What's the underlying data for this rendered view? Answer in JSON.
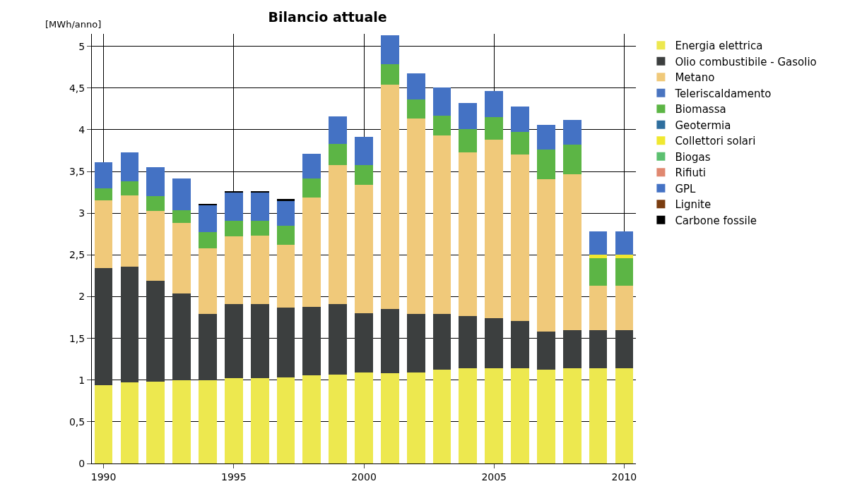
{
  "chart_data": {
    "type": "bar",
    "stacked": true,
    "title": "Bilancio attuale",
    "ylabel": "[MWh/anno]",
    "x": [
      1990,
      1991,
      1992,
      1993,
      1994,
      1995,
      1996,
      1997,
      1998,
      1999,
      2000,
      2001,
      2002,
      2003,
      2004,
      2005,
      2006,
      2007,
      2008,
      2009,
      2010
    ],
    "xlim": [
      1989.55,
      2010.45
    ],
    "xticks": [
      1990,
      1995,
      2000,
      2005,
      2010
    ],
    "ylim": [
      0,
      5.15
    ],
    "yticks": [
      0,
      {
        "value": 0.5,
        "label": "0,5"
      },
      1,
      {
        "value": 1.5,
        "label": "1,5"
      },
      2,
      {
        "value": 2.5,
        "label": "2,5"
      },
      3,
      {
        "value": 3.5,
        "label": "3,5"
      },
      4,
      {
        "value": 4.5,
        "label": "4,5"
      },
      5
    ],
    "grid": true,
    "legend": "right",
    "series": [
      {
        "name": "Energia elettrica",
        "color": "#ede84f",
        "values": [
          0.94,
          0.97,
          0.985,
          1.0,
          1.0,
          1.02,
          1.02,
          1.03,
          1.055,
          1.065,
          1.09,
          1.08,
          1.095,
          1.125,
          1.14,
          1.14,
          1.14,
          1.125,
          1.14,
          1.14,
          1.14
        ]
      },
      {
        "name": "Olio combustibile - Gasolio",
        "color": "#3c3f3f",
        "values": [
          1.405,
          1.39,
          1.205,
          1.035,
          0.79,
          0.895,
          0.895,
          0.835,
          0.825,
          0.85,
          0.715,
          0.77,
          0.695,
          0.665,
          0.63,
          0.605,
          0.57,
          0.46,
          0.46,
          0.46,
          0.46
        ]
      },
      {
        "name": "Metano",
        "color": "#f0c97a",
        "values": [
          0.81,
          0.855,
          0.84,
          0.845,
          0.79,
          0.805,
          0.815,
          0.76,
          1.31,
          1.66,
          1.535,
          2.69,
          2.345,
          2.14,
          1.96,
          2.14,
          1.99,
          1.825,
          1.865,
          0.53,
          0.53
        ]
      },
      {
        "name": "Teleriscaldamento",
        "color": "#4a74c0",
        "values": [
          0,
          0,
          0,
          0,
          0,
          0,
          0,
          0,
          0,
          0,
          0,
          0,
          0,
          0,
          0,
          0,
          0,
          0,
          0,
          0,
          0
        ]
      },
      {
        "name": "Biomassa",
        "color": "#5cb545",
        "values": [
          0.14,
          0.165,
          0.175,
          0.155,
          0.195,
          0.19,
          0.18,
          0.225,
          0.225,
          0.255,
          0.235,
          0.25,
          0.225,
          0.235,
          0.275,
          0.265,
          0.275,
          0.35,
          0.36,
          0.335,
          0.335
        ]
      },
      {
        "name": "Geotermia",
        "color": "#2e6e9e",
        "values": [
          0,
          0,
          0,
          0,
          0,
          0,
          0,
          0,
          0,
          0,
          0,
          0,
          0,
          0,
          0,
          0,
          0,
          0,
          0,
          0,
          0
        ]
      },
      {
        "name": "Collettori solari",
        "color": "#f0e830",
        "values": [
          0,
          0,
          0,
          0,
          0,
          0,
          0,
          0,
          0,
          0,
          0,
          0,
          0,
          0,
          0,
          0,
          0,
          0,
          0,
          0.035,
          0.035
        ]
      },
      {
        "name": "Biogas",
        "color": "#5cc070",
        "values": [
          0,
          0,
          0,
          0,
          0,
          0,
          0,
          0,
          0,
          0,
          0,
          0,
          0,
          0,
          0,
          0,
          0,
          0,
          0,
          0,
          0
        ]
      },
      {
        "name": "Rifiuti",
        "color": "#e08870",
        "values": [
          0,
          0,
          0,
          0,
          0,
          0,
          0,
          0,
          0,
          0,
          0,
          0,
          0,
          0,
          0,
          0,
          0,
          0,
          0,
          0,
          0
        ]
      },
      {
        "name": "GPL",
        "color": "#4472c4",
        "values": [
          0.32,
          0.35,
          0.345,
          0.38,
          0.32,
          0.335,
          0.335,
          0.3,
          0.295,
          0.33,
          0.34,
          0.34,
          0.32,
          0.34,
          0.315,
          0.315,
          0.3,
          0.295,
          0.295,
          0.285,
          0.285
        ]
      },
      {
        "name": "Lignite",
        "color": "#7a3d10",
        "values": [
          0,
          0,
          0,
          0,
          0,
          0,
          0,
          0,
          0,
          0,
          0,
          0,
          0,
          0,
          0,
          0,
          0,
          0,
          0,
          0,
          0
        ]
      },
      {
        "name": "Carbone fossile",
        "color": "#000000",
        "values": [
          0,
          0,
          0,
          0,
          0.02,
          0.02,
          0.02,
          0.02,
          0,
          0,
          0,
          0,
          0,
          0,
          0,
          0,
          0,
          0,
          0,
          0,
          0
        ]
      }
    ]
  }
}
